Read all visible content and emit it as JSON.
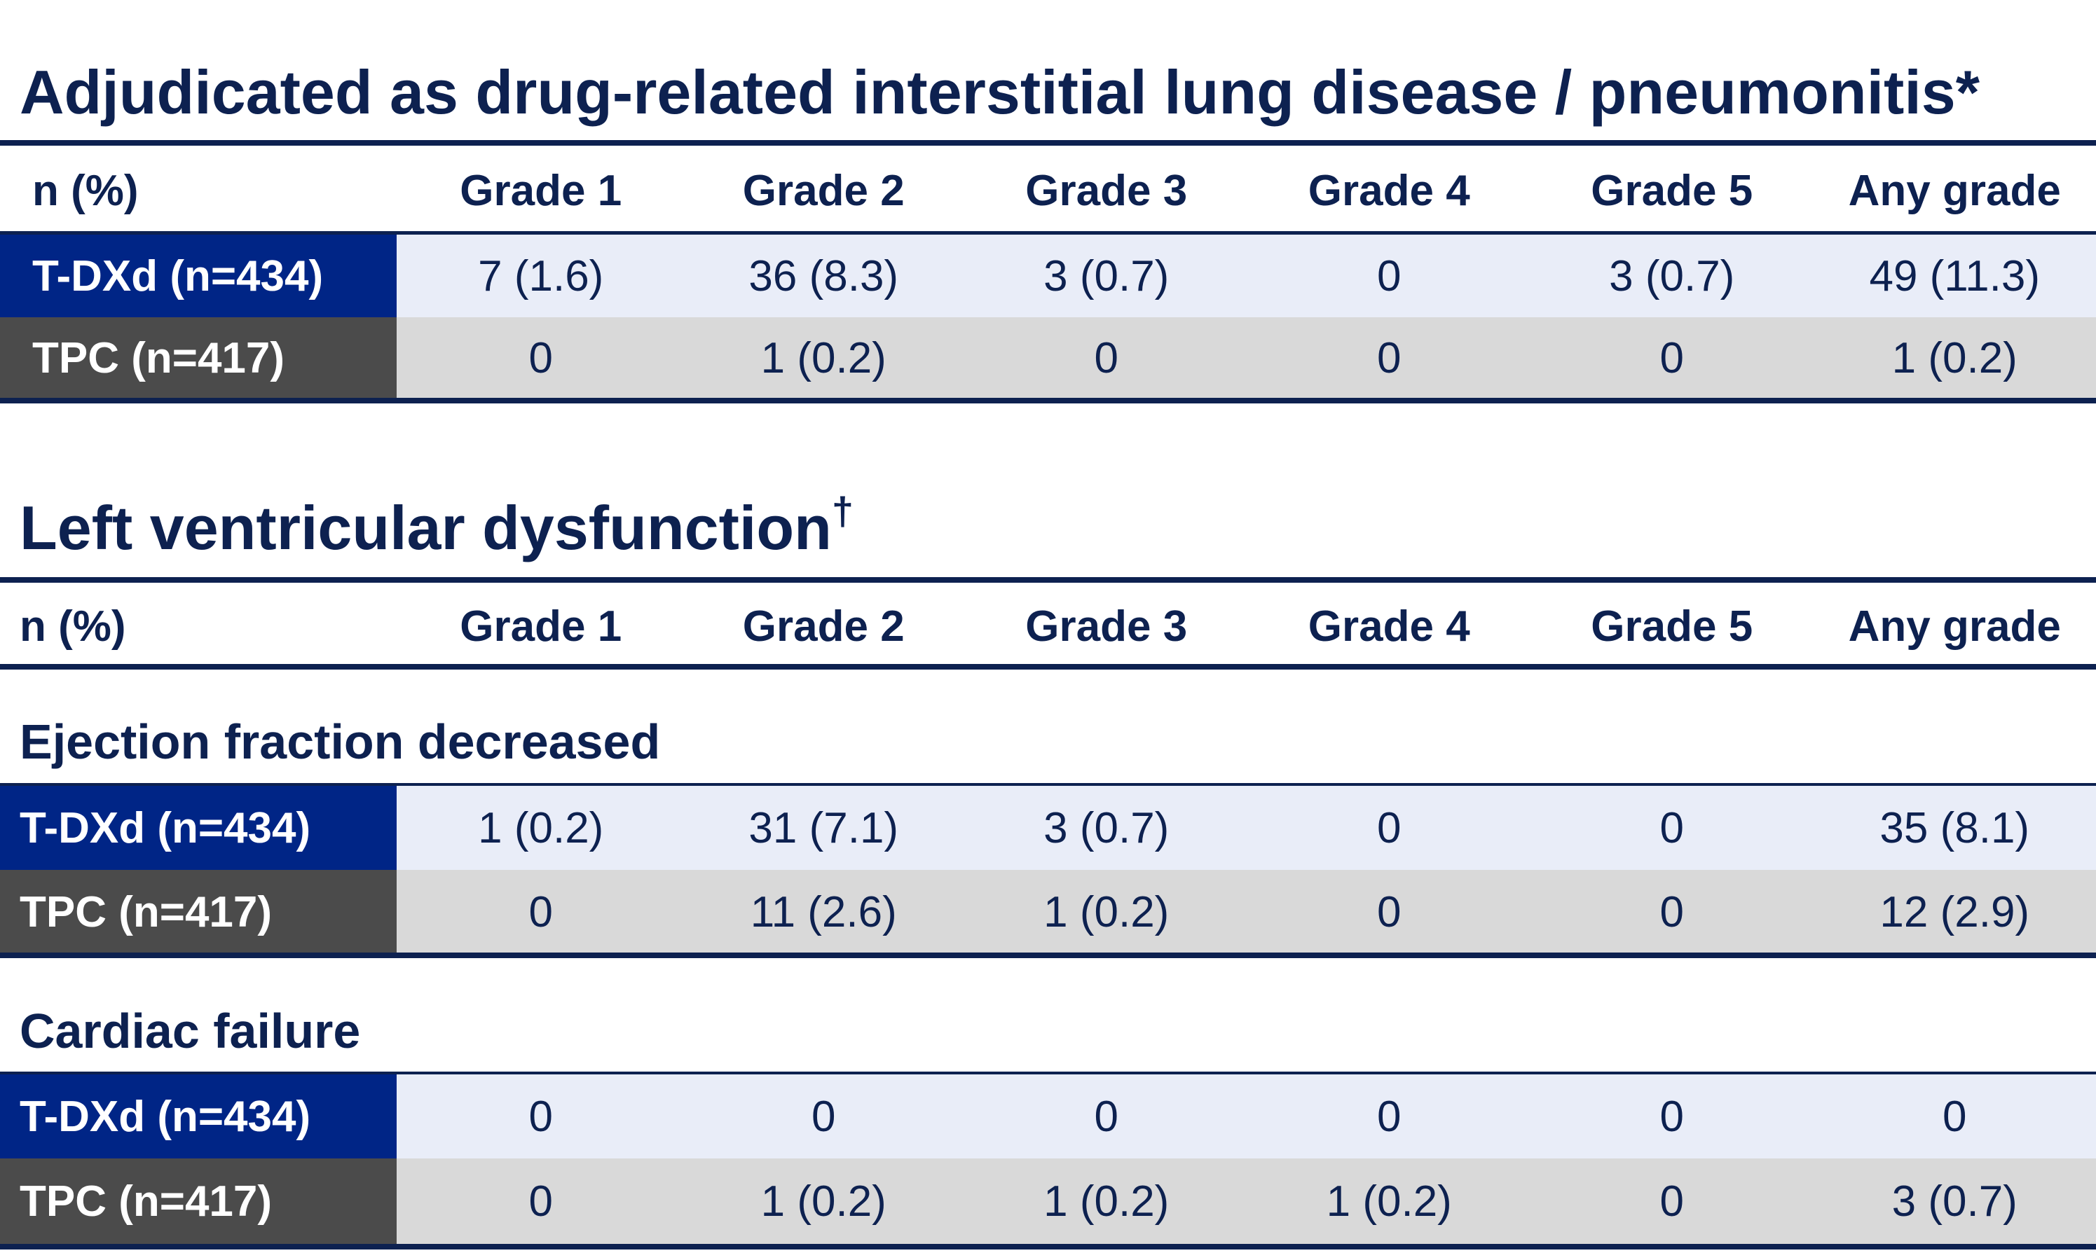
{
  "section1": {
    "title": "Adjudicated as drug-related interstitial lung disease / pneumonitis*",
    "header": {
      "label": "n (%)",
      "columns": [
        "Grade 1",
        "Grade 2",
        "Grade 3",
        "Grade 4",
        "Grade 5",
        "Any grade"
      ]
    },
    "rows": [
      {
        "label": "T-DXd (n=434)",
        "values": [
          "7 (1.6)",
          "36 (8.3)",
          "3 (0.7)",
          "0",
          "3 (0.7)",
          "49 (11.3)"
        ]
      },
      {
        "label": "TPC (n=417)",
        "values": [
          "0",
          "1 (0.2)",
          "0",
          "0",
          "0",
          "1 (0.2)"
        ]
      }
    ]
  },
  "section2": {
    "title": "Left ventricular dysfunction",
    "title_mark": "†",
    "header": {
      "label": "n (%)",
      "columns": [
        "Grade 1",
        "Grade 2",
        "Grade 3",
        "Grade 4",
        "Grade 5",
        "Any grade"
      ]
    },
    "groups": [
      {
        "name": "Ejection fraction decreased",
        "rows": [
          {
            "label": "T-DXd (n=434)",
            "values": [
              "1 (0.2)",
              "31 (7.1)",
              "3 (0.7)",
              "0",
              "0",
              "35 (8.1)"
            ]
          },
          {
            "label": "TPC (n=417)",
            "values": [
              "0",
              "11 (2.6)",
              "1 (0.2)",
              "0",
              "0",
              "12 (2.9)"
            ]
          }
        ]
      },
      {
        "name": "Cardiac failure",
        "rows": [
          {
            "label": "T-DXd (n=434)",
            "values": [
              "0",
              "0",
              "0",
              "0",
              "0",
              "0"
            ]
          },
          {
            "label": "TPC (n=417)",
            "values": [
              "0",
              "1 (0.2)",
              "1 (0.2)",
              "1 (0.2)",
              "0",
              "3 (0.7)"
            ]
          }
        ]
      }
    ]
  },
  "colors": {
    "navy_text": "#0d2150",
    "tdxd_label_bg": "#002586",
    "tpc_label_bg": "#4b4b4b",
    "tdxd_row_bg": "#e9edf8",
    "tpc_row_bg": "#d9d9d9"
  }
}
